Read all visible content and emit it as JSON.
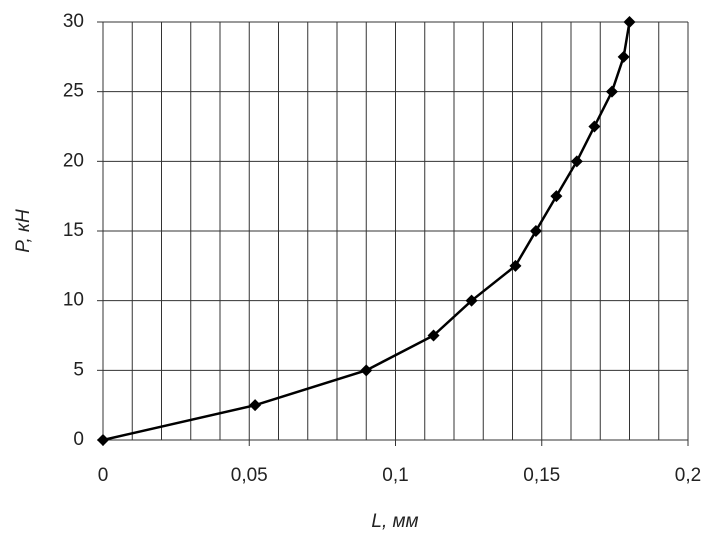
{
  "chart_data": {
    "type": "line",
    "x_label": "L, мм",
    "y_label": "P, кН",
    "series": [
      {
        "color": "#000000",
        "x": [
          0,
          0.052,
          0.09,
          0.113,
          0.126,
          0.141,
          0.148,
          0.155,
          0.162,
          0.168,
          0.174,
          0.178,
          0.18
        ],
        "values": [
          0,
          2.5,
          5,
          7.5,
          10,
          12.5,
          15,
          17.5,
          20,
          22.5,
          25,
          27.5,
          30
        ]
      }
    ],
    "xlim": [
      0,
      0.2
    ],
    "ylim": [
      0,
      30
    ],
    "xticks": [
      0,
      {
        "value": 0.05,
        "label": "0,05"
      },
      {
        "value": 0.1,
        "label": "0,1"
      },
      {
        "value": 0.15,
        "label": "0,15"
      },
      {
        "value": 0.2,
        "label": "0,2"
      }
    ],
    "yticks": [
      0,
      5,
      10,
      15,
      20,
      25,
      30
    ],
    "xgrid": [
      0.01,
      0.02,
      0.03,
      0.04,
      0.05,
      0.06,
      0.07,
      0.08,
      0.09,
      0.1,
      0.11,
      0.12,
      0.13,
      0.14,
      0.15,
      0.16,
      0.17,
      0.18,
      0.19,
      0.2
    ],
    "grid": true,
    "marker": "diamond"
  }
}
